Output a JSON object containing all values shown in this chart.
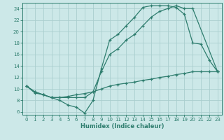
{
  "title": "",
  "xlabel": "Humidex (Indice chaleur)",
  "background_color": "#cce8e8",
  "line_color": "#2e7d6e",
  "grid_color": "#aacece",
  "xlim": [
    -0.5,
    23.5
  ],
  "ylim": [
    5.5,
    25.0
  ],
  "xticks": [
    0,
    1,
    2,
    3,
    4,
    5,
    6,
    7,
    8,
    9,
    10,
    11,
    12,
    13,
    14,
    15,
    16,
    17,
    18,
    19,
    20,
    21,
    22,
    23
  ],
  "yticks": [
    6,
    8,
    10,
    12,
    14,
    16,
    18,
    20,
    22,
    24
  ],
  "line1_x": [
    0,
    1,
    2,
    3,
    4,
    5,
    6,
    7,
    8,
    9,
    10,
    11,
    12,
    13,
    14,
    15,
    16,
    17,
    18,
    19,
    20,
    21,
    22,
    23
  ],
  "line1_y": [
    10.5,
    9.3,
    9.0,
    8.5,
    8.0,
    7.2,
    6.8,
    5.8,
    8.0,
    13.5,
    18.5,
    19.5,
    21.0,
    22.5,
    24.2,
    24.5,
    24.5,
    24.5,
    24.2,
    23.0,
    18.0,
    17.8,
    15.0,
    13.0
  ],
  "line2_x": [
    0,
    1,
    2,
    3,
    4,
    5,
    6,
    7,
    8,
    9,
    10,
    11,
    12,
    13,
    14,
    15,
    16,
    17,
    18,
    19,
    20,
    23
  ],
  "line2_y": [
    10.5,
    9.5,
    9.0,
    8.5,
    8.5,
    8.5,
    8.5,
    8.5,
    9.5,
    13.0,
    16.0,
    17.0,
    18.5,
    19.5,
    21.0,
    22.5,
    23.5,
    24.0,
    24.5,
    24.0,
    24.0,
    13.0
  ],
  "line3_x": [
    0,
    1,
    2,
    3,
    4,
    5,
    6,
    7,
    8,
    9,
    10,
    11,
    12,
    13,
    14,
    15,
    16,
    17,
    18,
    19,
    20,
    21,
    22,
    23
  ],
  "line3_y": [
    10.5,
    9.5,
    9.0,
    8.5,
    8.5,
    8.7,
    9.0,
    9.2,
    9.5,
    10.0,
    10.5,
    10.8,
    11.0,
    11.2,
    11.5,
    11.7,
    12.0,
    12.2,
    12.5,
    12.7,
    13.0,
    13.0,
    13.0,
    13.0
  ]
}
